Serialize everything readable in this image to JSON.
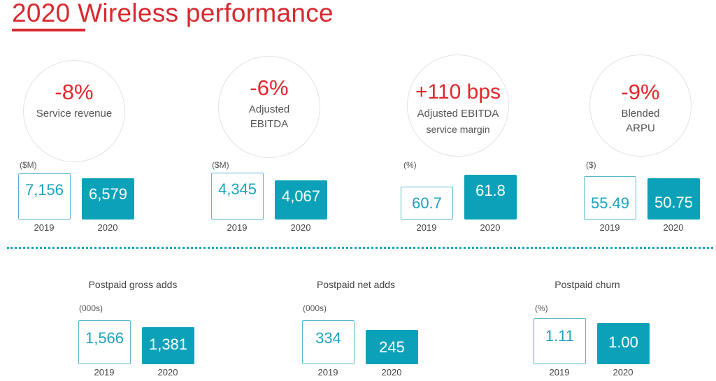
{
  "title": "2020 Wireless performance",
  "colors": {
    "accent_red": "#d9282f",
    "teal": "#0ba2b9"
  },
  "top_metrics": [
    {
      "change": "-8%",
      "label_lines": [
        "Service revenue"
      ],
      "unit": "($M)",
      "years": [
        "2019",
        "2020"
      ],
      "values": [
        "7,156",
        "6,579"
      ]
    },
    {
      "change": "-6%",
      "label_lines": [
        "Adjusted",
        "EBITDA"
      ],
      "unit": "($M)",
      "years": [
        "2019",
        "2020"
      ],
      "values": [
        "4,345",
        "4,067"
      ]
    },
    {
      "change": "+110 bps",
      "label_lines": [
        "Adjusted EBITDA",
        "service margin"
      ],
      "unit": "(%)",
      "years": [
        "2019",
        "2020"
      ],
      "values": [
        "60.7",
        "61.8"
      ]
    },
    {
      "change": "-9%",
      "label_lines": [
        "Blended",
        "ARPU"
      ],
      "unit": "($)",
      "years": [
        "2019",
        "2020"
      ],
      "values": [
        "55.49",
        "50.75"
      ]
    }
  ],
  "bottom_metrics": [
    {
      "label": "Postpaid gross adds",
      "unit": "(000s)",
      "years": [
        "2019",
        "2020"
      ],
      "values": [
        "1,566",
        "1,381"
      ]
    },
    {
      "label": "Postpaid net adds",
      "unit": "(000s)",
      "years": [
        "2019",
        "2020"
      ],
      "values": [
        "334",
        "245"
      ]
    },
    {
      "label": "Postpaid churn",
      "unit": "(%)",
      "years": [
        "2019",
        "2020"
      ],
      "values": [
        "1.11",
        "1.00"
      ]
    }
  ]
}
